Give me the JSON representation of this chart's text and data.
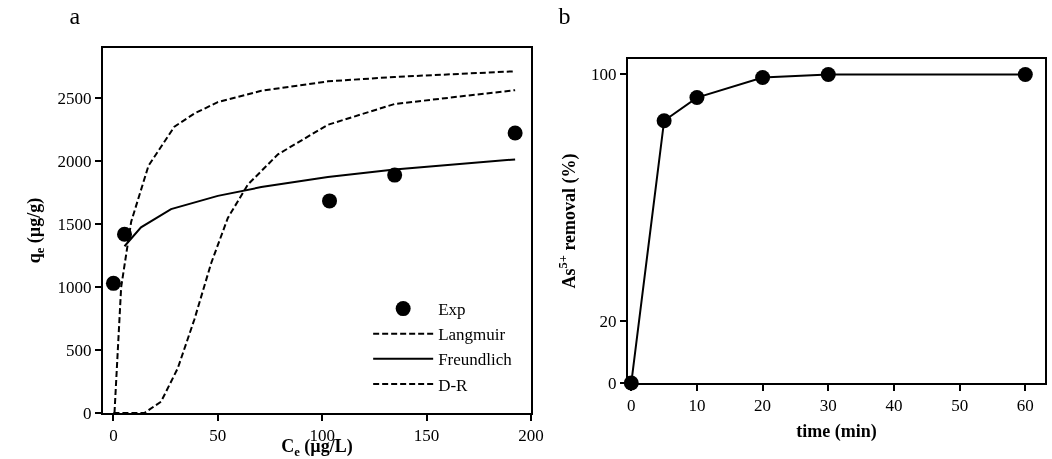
{
  "chart_data": [
    {
      "type": "line",
      "title": "a",
      "xlabel": "C$_{e}$ (µg/L)",
      "ylabel": "q$_{e}$ (µg/g)",
      "xlim": [
        -5,
        200
      ],
      "xticks": [
        0,
        50,
        100,
        150,
        200
      ],
      "ylim": [
        0,
        2900
      ],
      "yticks": [
        0,
        500,
        1000,
        1500,
        2000,
        2500
      ],
      "grid": false,
      "legend": "bottom right",
      "series": [
        {
          "name": "Exp",
          "type": "scatter",
          "marker": "circle",
          "color": "#000000",
          "x": [
            0,
            5.3,
            103.5,
            134.7,
            192.4
          ],
          "values": [
            1030,
            1420,
            1685,
            1890,
            2225
          ]
        },
        {
          "name": "Langmuir",
          "type": "line",
          "line_style": "dashed",
          "color": "#000000",
          "x": [
            0.5,
            3.7,
            8.5,
            16.8,
            29.2,
            38.8,
            50,
            70.8,
            102.7,
            134.6,
            192.4
          ],
          "values": [
            0,
            1000,
            1520,
            1965,
            2275,
            2380,
            2470,
            2560,
            2635,
            2670,
            2715
          ]
        },
        {
          "name": "Freundlich",
          "type": "line",
          "line_style": "solid",
          "color": "#000000",
          "x": [
            5.3,
            13.2,
            27.6,
            50,
            70.8,
            102.7,
            134.6,
            192.4
          ],
          "values": [
            1325,
            1475,
            1620,
            1725,
            1795,
            1875,
            1935,
            2015
          ]
        },
        {
          "name": "D-R",
          "type": "line",
          "line_style": "dashed",
          "color": "#000000",
          "x": [
            0,
            14.8,
            22.8,
            30.8,
            38.8,
            46.8,
            54.8,
            64.4,
            78.8,
            102.7,
            134.6,
            192.4
          ],
          "values": [
            0,
            0,
            90,
            355,
            745,
            1190,
            1550,
            1815,
            2055,
            2290,
            2455,
            2565
          ]
        }
      ]
    },
    {
      "type": "line",
      "title": "b",
      "xlabel": "time (min)",
      "ylabel": "As$^{5+}$ removal (%)",
      "xlim": [
        -0.5,
        63
      ],
      "xticks": [
        0,
        10,
        20,
        30,
        40,
        50,
        60
      ],
      "ylim": [
        0,
        105
      ],
      "yticks": [
        0,
        20,
        100
      ],
      "grid": false,
      "legend": false,
      "marker": "circle",
      "line_style": "solid",
      "series": [
        {
          "color": "#000000",
          "x": [
            0,
            5,
            10,
            20,
            30,
            60
          ],
          "values": [
            0,
            85,
            92.5,
            99,
            100,
            100
          ]
        }
      ]
    }
  ]
}
